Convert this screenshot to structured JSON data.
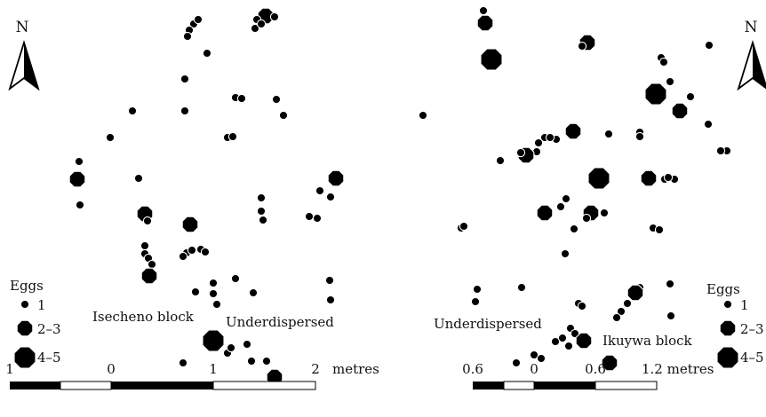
{
  "panels": [
    {
      "block_name": "Isecheno block",
      "pattern": "Underdispersed",
      "north": "N",
      "legend": {
        "title": "Eggs",
        "classes": [
          "1",
          "2–3",
          "4–5"
        ]
      },
      "scale": {
        "ticks": [
          "1",
          "0",
          "1",
          "2"
        ],
        "unit": "metres"
      }
    },
    {
      "block_name": "Ikuywa block",
      "pattern": "Underdispersed",
      "north": "N",
      "legend": {
        "title": "Eggs",
        "classes": [
          "1",
          "2–3",
          "4–5"
        ]
      },
      "scale": {
        "ticks": [
          "0.6",
          "0",
          "0.6"
        ],
        "last_tick": "1.2 metres"
      }
    }
  ],
  "points": {
    "left": [
      [
        218,
        27,
        1
      ],
      [
        213,
        34,
        1
      ],
      [
        211,
        41,
        1
      ],
      [
        223,
        22,
        1
      ],
      [
        299,
        18,
        2
      ],
      [
        289,
        22,
        1
      ],
      [
        309,
        19,
        1
      ],
      [
        287,
        32,
        1
      ],
      [
        294,
        27,
        1
      ],
      [
        233,
        60,
        1
      ],
      [
        208,
        89,
        1
      ],
      [
        149,
        125,
        1
      ],
      [
        208,
        125,
        1
      ],
      [
        124,
        155,
        1
      ],
      [
        265,
        110,
        1
      ],
      [
        272,
        111,
        1
      ],
      [
        311,
        112,
        1
      ],
      [
        319,
        130,
        1
      ],
      [
        256,
        155,
        1
      ],
      [
        262,
        154,
        1
      ],
      [
        89,
        182,
        1
      ],
      [
        87,
        202,
        2
      ],
      [
        90,
        231,
        1
      ],
      [
        156,
        201,
        1
      ],
      [
        380,
        201,
        1
      ],
      [
        378,
        201,
        2
      ],
      [
        360,
        215,
        1
      ],
      [
        294,
        223,
        1
      ],
      [
        294,
        238,
        1
      ],
      [
        296,
        248,
        1
      ],
      [
        163,
        241,
        2
      ],
      [
        166,
        249,
        1
      ],
      [
        214,
        253,
        2
      ],
      [
        348,
        244,
        1
      ],
      [
        357,
        246,
        1
      ],
      [
        372,
        222,
        1
      ],
      [
        163,
        277,
        1
      ],
      [
        163,
        286,
        1
      ],
      [
        167,
        291,
        1
      ],
      [
        171,
        298,
        1
      ],
      [
        210,
        285,
        1
      ],
      [
        216,
        282,
        1
      ],
      [
        226,
        281,
        1
      ],
      [
        231,
        284,
        1
      ],
      [
        206,
        289,
        1
      ],
      [
        168,
        311,
        2
      ],
      [
        265,
        314,
        1
      ],
      [
        240,
        319,
        1
      ],
      [
        220,
        329,
        1
      ],
      [
        240,
        331,
        1
      ],
      [
        285,
        330,
        1
      ],
      [
        371,
        316,
        1
      ],
      [
        372,
        338,
        1
      ],
      [
        244,
        343,
        1
      ],
      [
        240,
        384,
        3
      ],
      [
        256,
        398,
        1
      ],
      [
        260,
        392,
        1
      ],
      [
        278,
        388,
        1
      ],
      [
        283,
        407,
        1
      ],
      [
        300,
        407,
        1
      ],
      [
        309,
        425,
        2
      ],
      [
        206,
        409,
        1
      ]
    ],
    "right": [
      [
        544,
        12,
        1
      ],
      [
        546,
        26,
        2
      ],
      [
        553,
        67,
        3
      ],
      [
        661,
        48,
        2
      ],
      [
        655,
        52,
        1
      ],
      [
        798,
        51,
        1
      ],
      [
        744,
        65,
        1
      ],
      [
        747,
        70,
        1
      ],
      [
        754,
        92,
        1
      ],
      [
        738,
        106,
        3
      ],
      [
        765,
        125,
        2
      ],
      [
        777,
        109,
        1
      ],
      [
        476,
        130,
        1
      ],
      [
        797,
        140,
        1
      ],
      [
        613,
        155,
        1
      ],
      [
        606,
        161,
        1
      ],
      [
        626,
        157,
        1
      ],
      [
        619,
        155,
        1
      ],
      [
        645,
        148,
        2
      ],
      [
        685,
        151,
        1
      ],
      [
        720,
        149,
        1
      ],
      [
        720,
        154,
        1
      ],
      [
        604,
        171,
        1
      ],
      [
        592,
        175,
        2
      ],
      [
        586,
        172,
        1
      ],
      [
        563,
        181,
        1
      ],
      [
        818,
        170,
        1
      ],
      [
        811,
        170,
        1
      ],
      [
        674,
        201,
        3
      ],
      [
        730,
        201,
        2
      ],
      [
        748,
        202,
        1
      ],
      [
        759,
        202,
        1
      ],
      [
        752,
        200,
        1
      ],
      [
        637,
        224,
        1
      ],
      [
        631,
        233,
        1
      ],
      [
        613,
        240,
        2
      ],
      [
        665,
        240,
        2
      ],
      [
        680,
        240,
        1
      ],
      [
        660,
        246,
        1
      ],
      [
        646,
        258,
        1
      ],
      [
        735,
        257,
        1
      ],
      [
        742,
        259,
        1
      ],
      [
        519,
        257,
        1
      ],
      [
        522,
        255,
        1
      ],
      [
        636,
        286,
        1
      ],
      [
        537,
        326,
        1
      ],
      [
        587,
        324,
        1
      ],
      [
        720,
        324,
        1
      ],
      [
        715,
        330,
        2
      ],
      [
        754,
        320,
        1
      ],
      [
        535,
        340,
        1
      ],
      [
        651,
        342,
        1
      ],
      [
        655,
        345,
        1
      ],
      [
        706,
        342,
        1
      ],
      [
        699,
        351,
        1
      ],
      [
        694,
        358,
        1
      ],
      [
        755,
        356,
        1
      ],
      [
        642,
        370,
        1
      ],
      [
        647,
        376,
        1
      ],
      [
        657,
        384,
        2
      ],
      [
        633,
        381,
        1
      ],
      [
        625,
        385,
        1
      ],
      [
        640,
        390,
        1
      ],
      [
        601,
        400,
        1
      ],
      [
        609,
        404,
        1
      ],
      [
        581,
        409,
        1
      ],
      [
        686,
        409,
        2
      ]
    ]
  },
  "legend_marks": [
    {
      "x": 28,
      "y": 343,
      "size": 1
    },
    {
      "x": 28,
      "y": 370,
      "size": 2
    },
    {
      "x": 28,
      "y": 403,
      "size": 3
    }
  ]
}
